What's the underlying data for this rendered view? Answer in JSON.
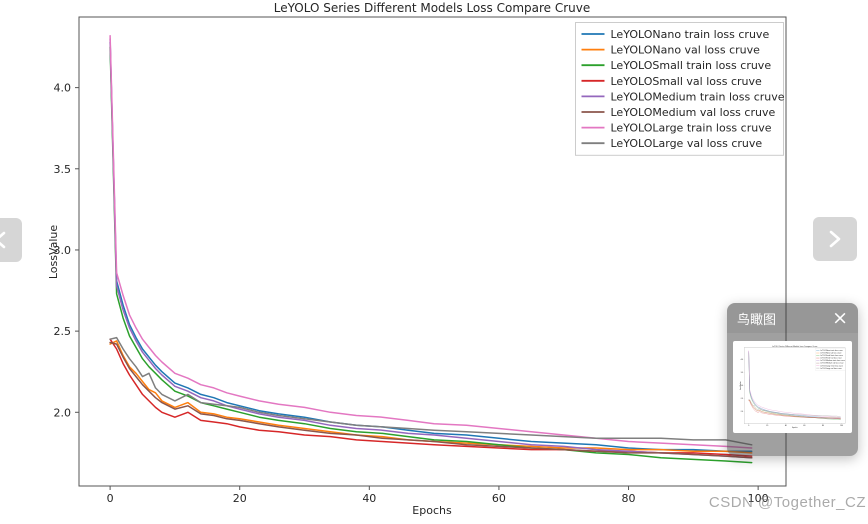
{
  "chart_data": {
    "type": "line",
    "title": "LeYOLO Series Different Models Loss Compare Cruve",
    "xlabel": "Epochs",
    "ylabel": "LossValue",
    "xlim": [
      -4.8,
      104.3
    ],
    "ylim": [
      1.546,
      4.435
    ],
    "x_ticks": [
      0,
      20,
      40,
      60,
      80,
      100
    ],
    "y_ticks": [
      2.0,
      2.5,
      3.0,
      3.5,
      4.0
    ],
    "grid": false,
    "legend_position": "upper right",
    "epochs": [
      0,
      1,
      2,
      3,
      4,
      5,
      6,
      7,
      8,
      10,
      12,
      14,
      16,
      18,
      20,
      23,
      26,
      30,
      34,
      38,
      42,
      46,
      50,
      55,
      60,
      65,
      70,
      75,
      80,
      85,
      90,
      95,
      99
    ],
    "series": [
      {
        "name": "LeYOLONano train loss cruve",
        "color": "#1f77b4",
        "values": [
          4.28,
          2.81,
          2.66,
          2.54,
          2.46,
          2.39,
          2.34,
          2.29,
          2.25,
          2.18,
          2.15,
          2.11,
          2.09,
          2.06,
          2.04,
          2.01,
          1.99,
          1.97,
          1.94,
          1.92,
          1.91,
          1.89,
          1.87,
          1.86,
          1.84,
          1.82,
          1.81,
          1.8,
          1.78,
          1.77,
          1.77,
          1.76,
          1.76
        ]
      },
      {
        "name": "LeYOLONano val loss cruve",
        "color": "#ff7f0e",
        "values": [
          2.42,
          2.44,
          2.35,
          2.28,
          2.24,
          2.19,
          2.14,
          2.12,
          2.07,
          2.03,
          2.06,
          2.0,
          1.99,
          1.97,
          1.96,
          1.94,
          1.92,
          1.9,
          1.88,
          1.86,
          1.85,
          1.83,
          1.82,
          1.81,
          1.8,
          1.79,
          1.78,
          1.78,
          1.77,
          1.77,
          1.76,
          1.76,
          1.75
        ]
      },
      {
        "name": "LeYOLOSmall train loss cruve",
        "color": "#2ca02c",
        "values": [
          4.25,
          2.73,
          2.58,
          2.47,
          2.4,
          2.33,
          2.28,
          2.24,
          2.2,
          2.13,
          2.1,
          2.06,
          2.04,
          2.02,
          2.0,
          1.97,
          1.95,
          1.93,
          1.9,
          1.88,
          1.87,
          1.85,
          1.83,
          1.82,
          1.8,
          1.78,
          1.77,
          1.75,
          1.74,
          1.72,
          1.71,
          1.7,
          1.69
        ]
      },
      {
        "name": "LeYOLOSmall val loss cruve",
        "color": "#d62728",
        "values": [
          2.45,
          2.39,
          2.3,
          2.23,
          2.17,
          2.11,
          2.07,
          2.03,
          2.0,
          1.97,
          2.0,
          1.95,
          1.94,
          1.93,
          1.91,
          1.89,
          1.88,
          1.86,
          1.85,
          1.83,
          1.82,
          1.81,
          1.8,
          1.79,
          1.78,
          1.77,
          1.77,
          1.76,
          1.76,
          1.75,
          1.75,
          1.74,
          1.73
        ]
      },
      {
        "name": "LeYOLOMedium train loss cruve",
        "color": "#9467bd",
        "values": [
          4.3,
          2.78,
          2.63,
          2.52,
          2.44,
          2.37,
          2.32,
          2.27,
          2.23,
          2.16,
          2.13,
          2.09,
          2.07,
          2.04,
          2.02,
          1.99,
          1.97,
          1.95,
          1.92,
          1.9,
          1.89,
          1.87,
          1.86,
          1.84,
          1.82,
          1.8,
          1.79,
          1.77,
          1.76,
          1.75,
          1.74,
          1.73,
          1.72
        ]
      },
      {
        "name": "LeYOLOMedium val loss cruve",
        "color": "#8c564b",
        "values": [
          2.43,
          2.42,
          2.34,
          2.27,
          2.22,
          2.17,
          2.13,
          2.09,
          2.06,
          2.02,
          2.04,
          1.99,
          1.98,
          1.96,
          1.95,
          1.93,
          1.91,
          1.89,
          1.87,
          1.86,
          1.84,
          1.83,
          1.82,
          1.8,
          1.79,
          1.78,
          1.77,
          1.76,
          1.75,
          1.75,
          1.74,
          1.73,
          1.72
        ]
      },
      {
        "name": "LeYOLOLarge train loss cruve",
        "color": "#e377c2",
        "values": [
          4.32,
          2.86,
          2.72,
          2.6,
          2.52,
          2.45,
          2.4,
          2.35,
          2.31,
          2.24,
          2.21,
          2.17,
          2.15,
          2.12,
          2.1,
          2.07,
          2.05,
          2.03,
          2.0,
          1.98,
          1.97,
          1.95,
          1.93,
          1.92,
          1.9,
          1.88,
          1.86,
          1.84,
          1.82,
          1.81,
          1.8,
          1.79,
          1.78
        ]
      },
      {
        "name": "LeYOLOLarge val loss cruve",
        "color": "#7f7f7f",
        "values": [
          2.45,
          2.46,
          2.39,
          2.33,
          2.28,
          2.22,
          2.24,
          2.15,
          2.11,
          2.07,
          2.11,
          2.06,
          2.05,
          2.04,
          2.03,
          2.0,
          1.98,
          1.96,
          1.94,
          1.92,
          1.91,
          1.9,
          1.89,
          1.88,
          1.87,
          1.86,
          1.85,
          1.84,
          1.84,
          1.84,
          1.83,
          1.83,
          1.8
        ]
      }
    ]
  },
  "overlay": {
    "birdview": {
      "title": "鸟瞰图",
      "close_glyph": "×"
    },
    "watermark": "CSDN @Together_CZ"
  }
}
